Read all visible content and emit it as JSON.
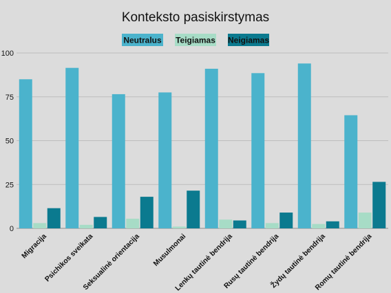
{
  "colors": {
    "background": "#dcdcdc",
    "gridline": "#bdbdbd",
    "neutralus": "#4bb3cc",
    "teigiamas": "#a7dcc6",
    "neigiamas": "#0b7a8f"
  },
  "chart_data": {
    "type": "bar",
    "title": "Konteksto pasiskirstymas",
    "xlabel": "",
    "ylabel": "",
    "ylim": [
      0,
      100
    ],
    "yticks": [
      0,
      25,
      50,
      75,
      100
    ],
    "grid": true,
    "legend_position": "top-center",
    "categories": [
      "Migracija",
      "Psichikos sveikata",
      "Seksualinė orientacija",
      "Musulmonai",
      "Lenkų tautinė bendrija",
      "Rusų tautinė bendrija",
      "Žydų tautinė bendrija",
      "Romų tautinė bendrija"
    ],
    "series": [
      {
        "name": "Neutralus",
        "color": "#4bb3cc",
        "values": [
          85,
          91.5,
          76.5,
          77.5,
          91,
          88.5,
          94,
          64.5
        ]
      },
      {
        "name": "Teigiamas",
        "color": "#a7dcc6",
        "values": [
          3,
          2,
          5.5,
          1,
          5,
          3,
          2.5,
          9
        ]
      },
      {
        "name": "Neigiamas",
        "color": "#0b7a8f",
        "values": [
          11.5,
          6.5,
          18,
          21.5,
          4.5,
          9,
          4,
          26.5
        ]
      }
    ]
  }
}
